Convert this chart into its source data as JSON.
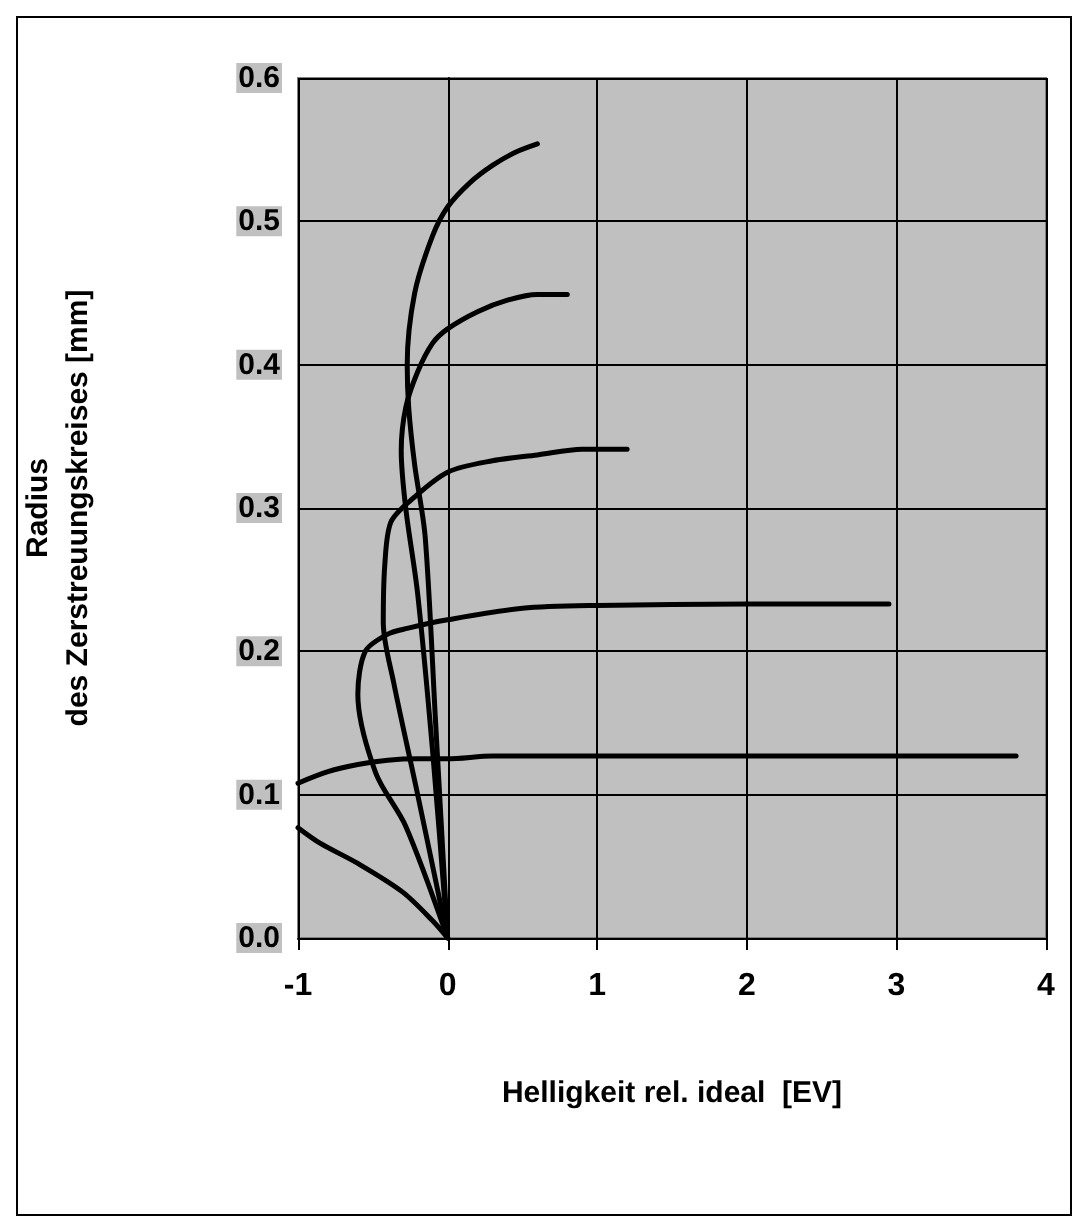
{
  "chart_data": {
    "type": "line",
    "xlabel": "Helligkeit rel. ideal  [EV]",
    "ylabel": "Radius\ndes Zerstreuungskreises [mm]",
    "xlim": [
      -1,
      4
    ],
    "xticks": [
      -1,
      0,
      1,
      2,
      3,
      4
    ],
    "ylim": [
      0,
      0.6
    ],
    "yticks": [
      {
        "value": 0,
        "label": "0.0"
      },
      0.1,
      0.2,
      0.3,
      0.4,
      0.5,
      0.6
    ],
    "grid": true,
    "marker": "none",
    "line_style": "solid",
    "series": [
      {
        "color": "#000000",
        "x": [
          0,
          -0.08,
          -0.15,
          -0.22,
          -0.26,
          -0.27,
          -0.22,
          -0.1,
          0,
          0.15,
          0.3,
          0.45,
          0.6
        ],
        "values": [
          0,
          0.15,
          0.28,
          0.33,
          0.37,
          0.4,
          0.45,
          0.49,
          0.51,
          0.527,
          0.539,
          0.548,
          0.554
        ]
      },
      {
        "color": "#000000",
        "x": [
          0,
          -0.1,
          -0.2,
          -0.28,
          -0.31,
          -0.28,
          -0.2,
          -0.1,
          0,
          0.2,
          0.4,
          0.6,
          0.8
        ],
        "values": [
          0,
          0.13,
          0.24,
          0.3,
          0.34,
          0.37,
          0.395,
          0.415,
          0.425,
          0.437,
          0.445,
          0.449,
          0.449
        ]
      },
      {
        "color": "#000000",
        "x": [
          0,
          -0.2,
          -0.36,
          -0.43,
          -0.42,
          -0.38,
          -0.25,
          0,
          0.3,
          0.6,
          0.9,
          1.2
        ],
        "values": [
          0,
          0.1,
          0.178,
          0.22,
          0.26,
          0.29,
          0.305,
          0.325,
          0.333,
          0.337,
          0.341,
          0.341
        ]
      },
      {
        "color": "#000000",
        "x": [
          0,
          -0.28,
          -0.48,
          -0.6,
          -0.55,
          -0.4,
          -0.27,
          0,
          0.5,
          1,
          2,
          2.95
        ],
        "values": [
          0,
          0.078,
          0.115,
          0.17,
          0.2,
          0.212,
          0.216,
          0.222,
          0.23,
          0.232,
          0.233,
          0.233
        ]
      },
      {
        "color": "#000000",
        "x": [
          -1,
          -0.8,
          -0.6,
          -0.4,
          -0.2,
          0,
          0.3,
          1,
          2,
          3,
          3.8
        ],
        "values": [
          0.108,
          0.116,
          0.121,
          0.124,
          0.125,
          0.125,
          0.127,
          0.127,
          0.127,
          0.127,
          0.127
        ]
      },
      {
        "color": "#000000",
        "x": [
          0,
          -0.1,
          -0.3,
          -0.6,
          -0.85,
          -1
        ],
        "values": [
          0,
          0.012,
          0.032,
          0.052,
          0.066,
          0.077
        ]
      }
    ]
  }
}
